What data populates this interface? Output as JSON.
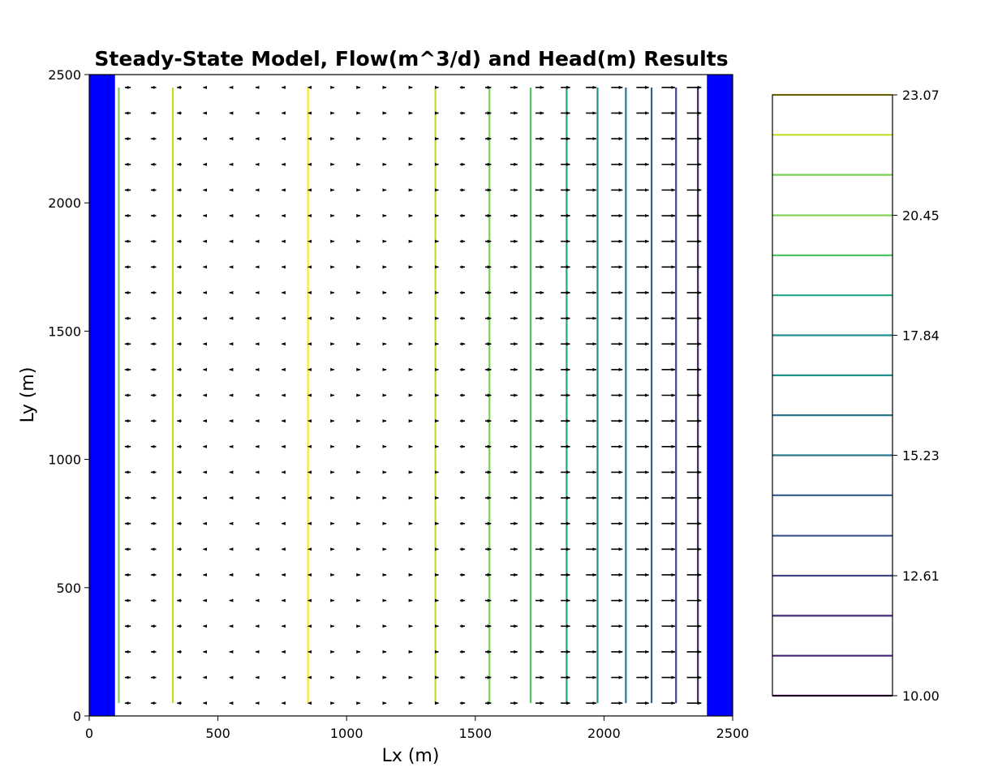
{
  "chart_data": {
    "type": "contour-quiver",
    "title": "Steady-State Model, Flow(m^3/d) and Head(m) Results",
    "xlabel": "Lx (m)",
    "ylabel": "Ly (m)",
    "xlim": [
      0,
      2500
    ],
    "ylim": [
      0,
      2500
    ],
    "xticks": [
      "0",
      "500",
      "1000",
      "1500",
      "2000",
      "2500"
    ],
    "yticks": [
      "0",
      "500",
      "1000",
      "1500",
      "2000",
      "2500"
    ],
    "boundary_color": "#0000ff",
    "boundaries": [
      {
        "x0": 0,
        "x1": 100
      },
      {
        "x0": 2400,
        "x1": 2500
      }
    ],
    "contour_extent_y": [
      50,
      2450
    ],
    "contours": [
      {
        "x": 115,
        "level": 21.3,
        "color": "#7ad151"
      },
      {
        "x": 325,
        "level": 22.2,
        "color": "#bddf26"
      },
      {
        "x": 850,
        "level": 23.07,
        "color": "#fde725"
      },
      {
        "x": 1345,
        "level": 22.2,
        "color": "#bddf26"
      },
      {
        "x": 1555,
        "level": 20.45,
        "color": "#7ad151"
      },
      {
        "x": 1715,
        "level": 19.6,
        "color": "#52c569"
      },
      {
        "x": 1855,
        "level": 18.7,
        "color": "#22a884"
      },
      {
        "x": 1975,
        "level": 17.84,
        "color": "#21918c"
      },
      {
        "x": 2085,
        "level": 16.1,
        "color": "#2a788e"
      },
      {
        "x": 2185,
        "level": 14.36,
        "color": "#355f8d"
      },
      {
        "x": 2280,
        "level": 13.5,
        "color": "#414487"
      },
      {
        "x": 2365,
        "level": 11.7,
        "color": "#482475"
      }
    ],
    "quiver": {
      "x": [
        150,
        250,
        350,
        450,
        550,
        650,
        750,
        850,
        950,
        1050,
        1150,
        1250,
        1350,
        1450,
        1550,
        1650,
        1750,
        1850,
        1950,
        2050,
        2150,
        2250,
        2350
      ],
      "y": [
        50,
        150,
        250,
        350,
        450,
        550,
        650,
        750,
        850,
        950,
        1050,
        1150,
        1250,
        1350,
        1450,
        1550,
        1650,
        1750,
        1850,
        1950,
        2050,
        2150,
        2250,
        2350,
        2450
      ],
      "u": [
        -45,
        -40,
        -34,
        -28,
        -21,
        -14,
        -8,
        -2,
        6,
        10,
        16,
        22,
        29,
        38,
        46,
        56,
        64,
        72,
        80,
        88,
        96,
        104,
        112
      ]
    },
    "colorbar": {
      "ticks": [
        "23.07",
        "20.45",
        "17.84",
        "15.23",
        "12.61",
        "10.00"
      ],
      "tick_values": [
        23.07,
        20.45,
        17.84,
        15.23,
        12.61,
        10.0
      ],
      "min": 10.0,
      "max": 23.07,
      "levels": [
        {
          "value": 23.07,
          "color": "#fde725"
        },
        {
          "value": 22.2,
          "color": "#bddf26"
        },
        {
          "value": 21.33,
          "color": "#7ad151"
        },
        {
          "value": 20.45,
          "color": "#7ad151"
        },
        {
          "value": 19.58,
          "color": "#52c569"
        },
        {
          "value": 18.71,
          "color": "#22a884"
        },
        {
          "value": 17.84,
          "color": "#21918c"
        },
        {
          "value": 16.97,
          "color": "#21918c"
        },
        {
          "value": 16.1,
          "color": "#2a788e"
        },
        {
          "value": 15.23,
          "color": "#2a788e"
        },
        {
          "value": 14.36,
          "color": "#355f8d"
        },
        {
          "value": 13.48,
          "color": "#3b528b"
        },
        {
          "value": 12.61,
          "color": "#414487"
        },
        {
          "value": 11.74,
          "color": "#472d7b"
        },
        {
          "value": 10.87,
          "color": "#482475"
        },
        {
          "value": 10.0,
          "color": "#440154"
        }
      ]
    }
  }
}
